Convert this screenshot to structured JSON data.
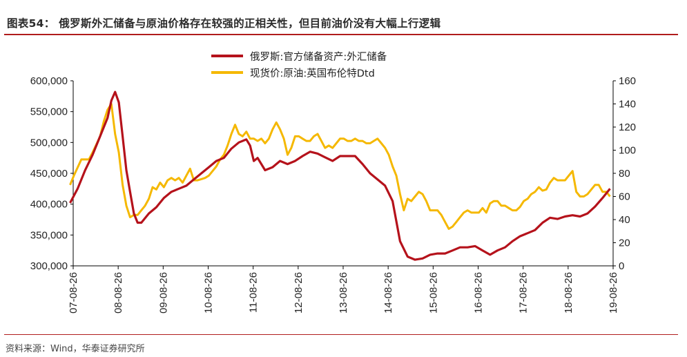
{
  "header": {
    "title": "图表54：   俄罗斯外汇储备与原油价格存在较强的正相关性，但目前油价没有大幅上行逻辑"
  },
  "footer": {
    "source": "资料来源：Wind，华泰证券研究所"
  },
  "colors": {
    "accent_rule": "#b01c1c",
    "series_reserves": "#b5121b",
    "series_oil": "#f5b800"
  },
  "chart_data": {
    "type": "line",
    "title": "",
    "x_tick_labels": [
      "07-08-26",
      "08-08-26",
      "09-08-26",
      "10-08-26",
      "11-08-26",
      "12-08-26",
      "13-08-26",
      "14-08-26",
      "15-08-26",
      "16-08-26",
      "17-08-26",
      "18-08-26",
      "19-08-26"
    ],
    "xlim": [
      "2007-08-26",
      "2019-08-26"
    ],
    "y_left": {
      "ylim": [
        300000,
        600000
      ],
      "ticks": [
        "300,000",
        "350,000",
        "400,000",
        "450,000",
        "500,000",
        "550,000",
        "600,000"
      ]
    },
    "y_right": {
      "ylim": [
        0,
        160
      ],
      "ticks": [
        "0",
        "20",
        "40",
        "60",
        "80",
        "100",
        "120",
        "140",
        "160"
      ]
    },
    "legend": {
      "placement": "top-center"
    },
    "series": [
      {
        "name": "俄罗斯:官方储备资产:外汇储备",
        "axis": "left",
        "x": [
          "2007-08",
          "2007-10",
          "2007-12",
          "2008-02",
          "2008-04",
          "2008-06",
          "2008-07",
          "2008-08",
          "2008-09",
          "2008-10",
          "2008-11",
          "2008-12",
          "2009-01",
          "2009-02",
          "2009-03",
          "2009-05",
          "2009-07",
          "2009-09",
          "2009-11",
          "2010-01",
          "2010-03",
          "2010-05",
          "2010-07",
          "2010-09",
          "2010-11",
          "2011-01",
          "2011-03",
          "2011-05",
          "2011-07",
          "2011-08",
          "2011-09",
          "2011-10",
          "2011-12",
          "2012-02",
          "2012-04",
          "2012-06",
          "2012-08",
          "2012-10",
          "2012-12",
          "2013-02",
          "2013-04",
          "2013-06",
          "2013-08",
          "2013-10",
          "2013-12",
          "2014-02",
          "2014-04",
          "2014-06",
          "2014-08",
          "2014-10",
          "2014-12",
          "2015-02",
          "2015-04",
          "2015-06",
          "2015-08",
          "2015-10",
          "2015-12",
          "2016-02",
          "2016-04",
          "2016-06",
          "2016-08",
          "2016-10",
          "2016-12",
          "2017-02",
          "2017-04",
          "2017-06",
          "2017-08",
          "2017-10",
          "2017-12",
          "2018-02",
          "2018-04",
          "2018-06",
          "2018-08",
          "2018-10",
          "2018-12",
          "2019-02",
          "2019-04",
          "2019-06",
          "2019-08"
        ],
        "values": [
          402000,
          425000,
          455000,
          480000,
          510000,
          540000,
          568000,
          582000,
          565000,
          510000,
          455000,
          420000,
          385000,
          370000,
          370000,
          385000,
          395000,
          410000,
          420000,
          425000,
          430000,
          440000,
          450000,
          460000,
          470000,
          475000,
          490000,
          500000,
          505000,
          495000,
          470000,
          475000,
          455000,
          460000,
          470000,
          465000,
          470000,
          478000,
          485000,
          482000,
          476000,
          470000,
          478000,
          478000,
          478000,
          465000,
          450000,
          440000,
          430000,
          405000,
          340000,
          315000,
          310000,
          312000,
          318000,
          320000,
          320000,
          325000,
          330000,
          330000,
          332000,
          325000,
          318000,
          325000,
          330000,
          340000,
          348000,
          353000,
          358000,
          370000,
          378000,
          376000,
          380000,
          382000,
          380000,
          385000,
          396000,
          410000,
          425000
        ]
      },
      {
        "name": "现货价:原油:英国布伦特Dtd",
        "axis": "right",
        "x": [
          "2007-08",
          "2007-09",
          "2007-10",
          "2007-11",
          "2007-12",
          "2008-01",
          "2008-02",
          "2008-03",
          "2008-04",
          "2008-05",
          "2008-06",
          "2008-07",
          "2008-08",
          "2008-09",
          "2008-10",
          "2008-11",
          "2008-12",
          "2009-01",
          "2009-02",
          "2009-03",
          "2009-04",
          "2009-05",
          "2009-06",
          "2009-07",
          "2009-08",
          "2009-09",
          "2009-10",
          "2009-11",
          "2009-12",
          "2010-01",
          "2010-02",
          "2010-03",
          "2010-04",
          "2010-05",
          "2010-06",
          "2010-07",
          "2010-08",
          "2010-09",
          "2010-10",
          "2010-11",
          "2010-12",
          "2011-01",
          "2011-02",
          "2011-03",
          "2011-04",
          "2011-05",
          "2011-06",
          "2011-07",
          "2011-08",
          "2011-09",
          "2011-10",
          "2011-11",
          "2011-12",
          "2012-01",
          "2012-02",
          "2012-03",
          "2012-04",
          "2012-05",
          "2012-06",
          "2012-07",
          "2012-08",
          "2012-09",
          "2012-10",
          "2012-11",
          "2012-12",
          "2013-01",
          "2013-02",
          "2013-03",
          "2013-04",
          "2013-05",
          "2013-06",
          "2013-07",
          "2013-08",
          "2013-09",
          "2013-10",
          "2013-11",
          "2013-12",
          "2014-01",
          "2014-02",
          "2014-03",
          "2014-04",
          "2014-05",
          "2014-06",
          "2014-07",
          "2014-08",
          "2014-09",
          "2014-10",
          "2014-11",
          "2014-12",
          "2015-01",
          "2015-02",
          "2015-03",
          "2015-04",
          "2015-05",
          "2015-06",
          "2015-07",
          "2015-08",
          "2015-09",
          "2015-10",
          "2015-11",
          "2015-12",
          "2016-01",
          "2016-02",
          "2016-03",
          "2016-04",
          "2016-05",
          "2016-06",
          "2016-07",
          "2016-08",
          "2016-09",
          "2016-10",
          "2016-11",
          "2016-12",
          "2017-01",
          "2017-02",
          "2017-03",
          "2017-04",
          "2017-05",
          "2017-06",
          "2017-07",
          "2017-08",
          "2017-09",
          "2017-10",
          "2017-11",
          "2017-12",
          "2018-01",
          "2018-02",
          "2018-03",
          "2018-04",
          "2018-05",
          "2018-06",
          "2018-07",
          "2018-08",
          "2018-09",
          "2018-10",
          "2018-11",
          "2018-12",
          "2019-01",
          "2019-02",
          "2019-03",
          "2019-04",
          "2019-05",
          "2019-06",
          "2019-07",
          "2019-08"
        ],
        "values": [
          70,
          78,
          85,
          92,
          92,
          92,
          98,
          105,
          112,
          125,
          135,
          140,
          114,
          98,
          70,
          52,
          42,
          44,
          44,
          48,
          52,
          58,
          68,
          66,
          72,
          68,
          74,
          76,
          74,
          76,
          72,
          78,
          84,
          74,
          74,
          75,
          76,
          78,
          82,
          86,
          92,
          96,
          104,
          114,
          122,
          114,
          112,
          116,
          110,
          110,
          108,
          110,
          106,
          110,
          118,
          124,
          118,
          110,
          96,
          102,
          112,
          112,
          110,
          108,
          108,
          112,
          114,
          108,
          102,
          104,
          102,
          106,
          110,
          110,
          108,
          108,
          110,
          108,
          108,
          106,
          106,
          108,
          110,
          106,
          102,
          96,
          86,
          78,
          62,
          48,
          58,
          56,
          60,
          64,
          62,
          56,
          48,
          48,
          48,
          44,
          38,
          32,
          34,
          38,
          42,
          46,
          48,
          46,
          46,
          46,
          50,
          46,
          54,
          56,
          56,
          52,
          52,
          50,
          48,
          48,
          51,
          56,
          58,
          62,
          64,
          68,
          65,
          66,
          72,
          76,
          74,
          74,
          74,
          78,
          82,
          64,
          60,
          60,
          62,
          66,
          70,
          70,
          64,
          64,
          60
        ]
      }
    ]
  }
}
